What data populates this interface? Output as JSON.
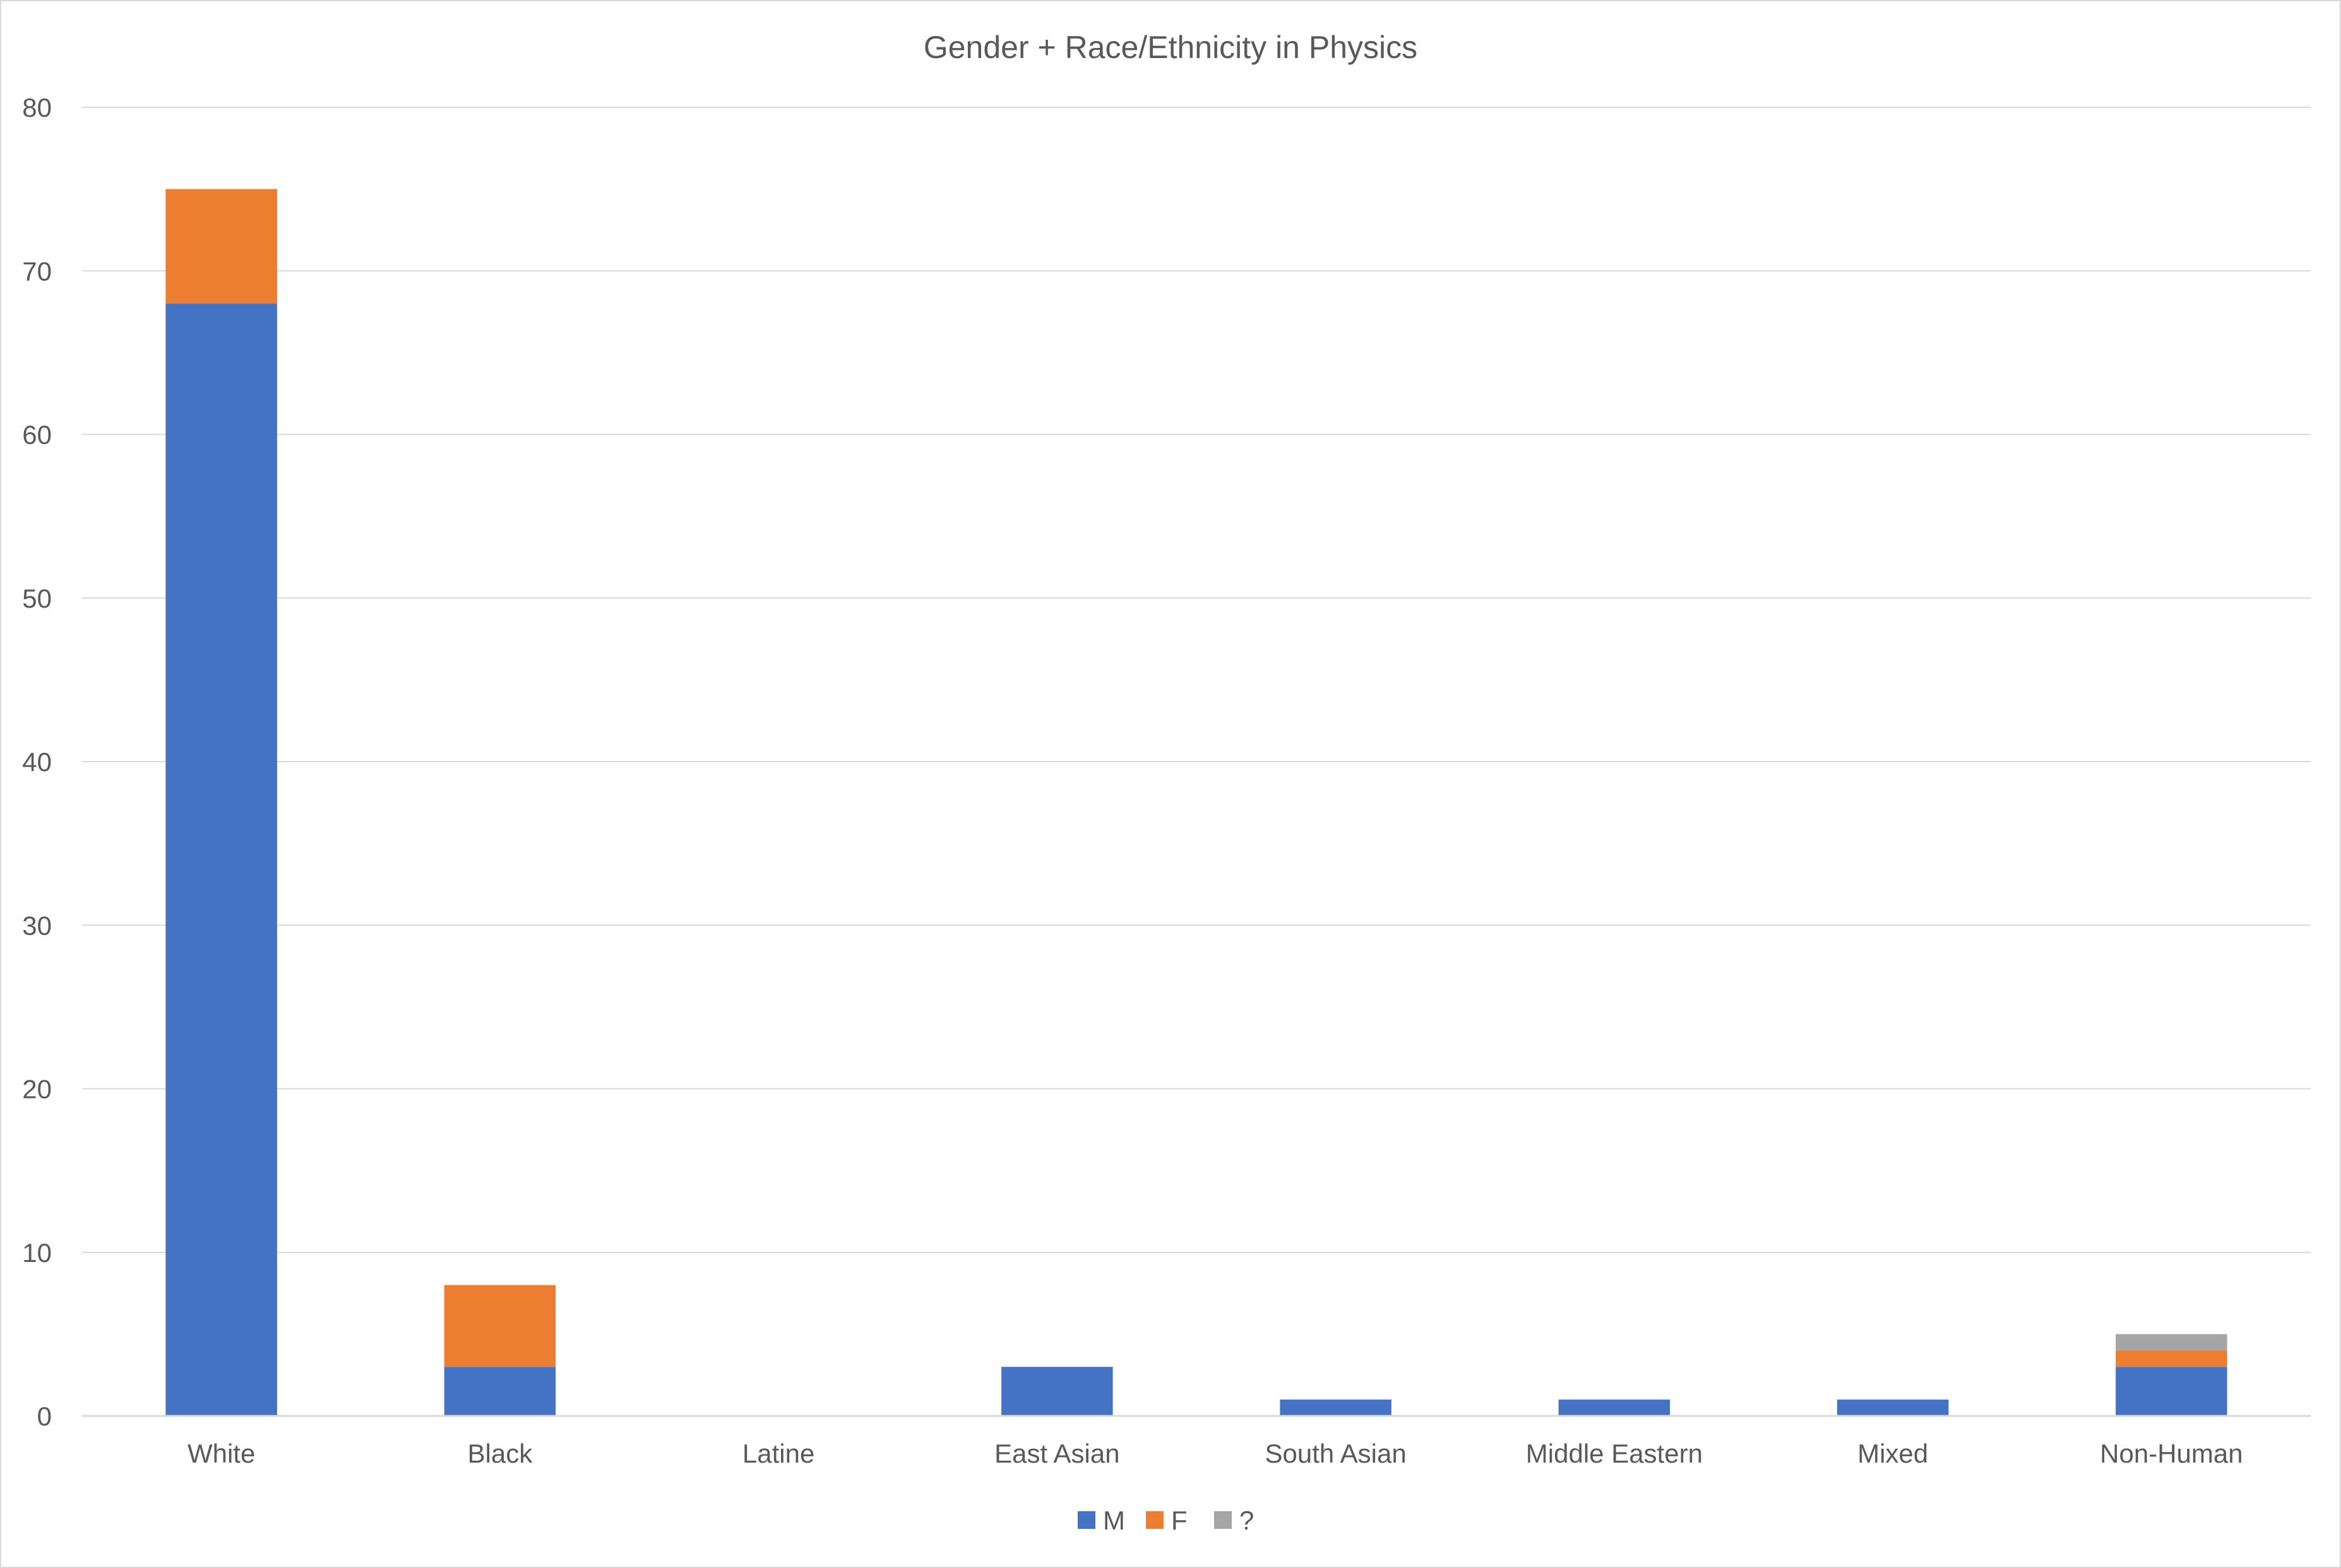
{
  "chart_data": {
    "type": "bar",
    "stacked": true,
    "title": "Gender + Race/Ethnicity in Physics",
    "xlabel": "",
    "ylabel": "",
    "categories": [
      "White",
      "Black",
      "Latine",
      "East Asian",
      "South Asian",
      "Middle Eastern",
      "Mixed",
      "Non-Human"
    ],
    "series": [
      {
        "name": "M",
        "color": "#4472c4",
        "values": [
          68,
          3,
          0,
          3,
          1,
          1,
          1,
          3
        ]
      },
      {
        "name": "F",
        "color": "#ed7d31",
        "values": [
          7,
          5,
          0,
          0,
          0,
          0,
          0,
          1
        ]
      },
      {
        "name": "?",
        "color": "#a5a5a5",
        "values": [
          0,
          0,
          0,
          0,
          0,
          0,
          0,
          1
        ]
      }
    ],
    "ylim": [
      0,
      80
    ],
    "yticks": [
      "0",
      "10",
      "20",
      "30",
      "40",
      "50",
      "60",
      "70",
      "80"
    ],
    "grid": true,
    "legend_position": "bottom"
  }
}
